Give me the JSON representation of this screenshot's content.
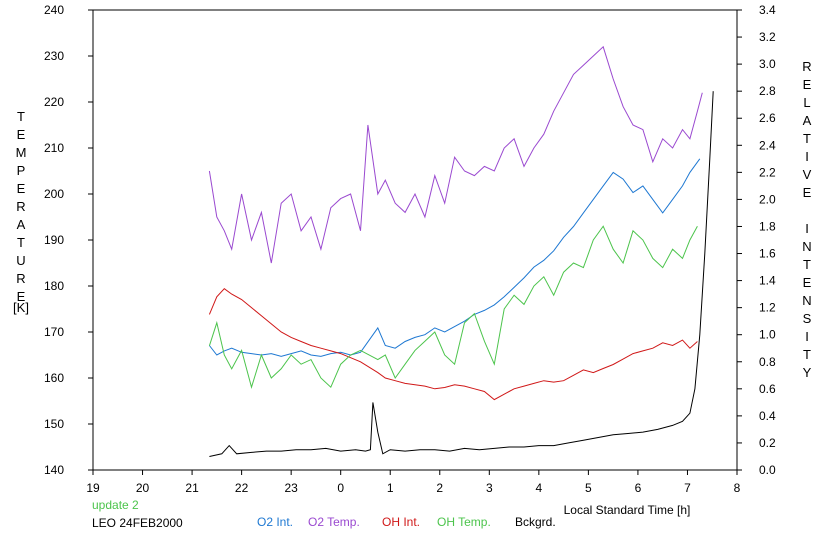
{
  "chart_data": {
    "type": "line",
    "title": "",
    "annotation_update": "update 2",
    "annotation_station": "LEO 24FEB2000",
    "xlabel": "Local Standard Time [h]",
    "ylabel_left": "TEMPERATURE",
    "ylabel_left_unit": "[K]",
    "ylabel_right": "RELATIVE INTENSITY",
    "x_ticks": [
      "19",
      "20",
      "21",
      "22",
      "23",
      "0",
      "1",
      "2",
      "3",
      "4",
      "5",
      "6",
      "7",
      "8"
    ],
    "y_left_ticks": [
      "140",
      "150",
      "160",
      "170",
      "180",
      "190",
      "200",
      "210",
      "220",
      "230",
      "240"
    ],
    "y_right_ticks": [
      "0.0",
      "0.2",
      "0.4",
      "0.6",
      "0.8",
      "1.0",
      "1.2",
      "1.4",
      "1.6",
      "1.8",
      "2.0",
      "2.2",
      "2.4",
      "2.6",
      "2.8",
      "3.0",
      "3.2",
      "3.4"
    ],
    "xlim": [
      19,
      32
    ],
    "ylim_left": [
      140,
      240
    ],
    "ylim_right": [
      0,
      3.4
    ],
    "grid": false,
    "legend_position": "bottom",
    "series": [
      {
        "name": "O2 Int.",
        "axis": "right",
        "color": "#1e78d2",
        "x": [
          21.35,
          21.5,
          21.65,
          21.8,
          22.0,
          22.2,
          22.4,
          22.6,
          22.8,
          23.0,
          23.2,
          23.4,
          23.6,
          23.8,
          24.0,
          24.2,
          24.4,
          24.75,
          24.9,
          25.1,
          25.3,
          25.5,
          25.7,
          25.9,
          26.1,
          26.3,
          26.5,
          26.7,
          26.9,
          27.1,
          27.3,
          27.5,
          27.7,
          27.9,
          28.1,
          28.3,
          28.5,
          28.7,
          28.9,
          29.1,
          29.3,
          29.5,
          29.7,
          29.9,
          30.1,
          30.3,
          30.5,
          30.7,
          30.9,
          31.05,
          31.25
        ],
        "y": [
          0.92,
          0.85,
          0.88,
          0.9,
          0.87,
          0.86,
          0.85,
          0.86,
          0.84,
          0.86,
          0.88,
          0.85,
          0.84,
          0.86,
          0.87,
          0.85,
          0.87,
          1.05,
          0.92,
          0.9,
          0.95,
          0.98,
          1.0,
          1.05,
          1.02,
          1.06,
          1.1,
          1.15,
          1.18,
          1.22,
          1.28,
          1.35,
          1.42,
          1.5,
          1.55,
          1.62,
          1.72,
          1.8,
          1.9,
          2.0,
          2.1,
          2.2,
          2.15,
          2.05,
          2.1,
          2.0,
          1.9,
          2.0,
          2.1,
          2.2,
          2.3
        ]
      },
      {
        "name": "O2 Temp.",
        "axis": "left",
        "color": "#9a49d0",
        "x": [
          21.35,
          21.5,
          21.65,
          21.8,
          22.0,
          22.2,
          22.4,
          22.6,
          22.8,
          23.0,
          23.2,
          23.4,
          23.6,
          23.8,
          24.0,
          24.2,
          24.4,
          24.55,
          24.75,
          24.9,
          25.1,
          25.3,
          25.5,
          25.7,
          25.9,
          26.1,
          26.3,
          26.5,
          26.7,
          26.9,
          27.1,
          27.3,
          27.5,
          27.7,
          27.9,
          28.1,
          28.3,
          28.5,
          28.7,
          28.9,
          29.1,
          29.3,
          29.5,
          29.7,
          29.9,
          30.1,
          30.3,
          30.5,
          30.7,
          30.9,
          31.05,
          31.2,
          31.3
        ],
        "y": [
          205,
          195,
          192,
          188,
          200,
          190,
          196,
          185,
          198,
          200,
          192,
          195,
          188,
          197,
          199,
          200,
          192,
          215,
          200,
          203,
          198,
          196,
          200,
          195,
          204,
          198,
          208,
          205,
          204,
          206,
          205,
          210,
          212,
          206,
          210,
          213,
          218,
          222,
          226,
          228,
          230,
          232,
          225,
          219,
          215,
          214,
          207,
          212,
          210,
          214,
          212,
          218,
          222
        ]
      },
      {
        "name": "OH Int.",
        "axis": "right",
        "color": "#d01818",
        "x": [
          21.35,
          21.5,
          21.65,
          21.8,
          22.0,
          22.2,
          22.4,
          22.6,
          22.8,
          23.0,
          23.2,
          23.4,
          23.6,
          23.8,
          24.0,
          24.2,
          24.4,
          24.75,
          24.9,
          25.1,
          25.3,
          25.5,
          25.7,
          25.9,
          26.1,
          26.3,
          26.5,
          26.7,
          26.9,
          27.1,
          27.3,
          27.5,
          27.7,
          27.9,
          28.1,
          28.3,
          28.5,
          28.7,
          28.9,
          29.1,
          29.3,
          29.5,
          29.7,
          29.9,
          30.1,
          30.3,
          30.5,
          30.7,
          30.9,
          31.05,
          31.2
        ],
        "y": [
          1.15,
          1.28,
          1.34,
          1.3,
          1.26,
          1.2,
          1.14,
          1.08,
          1.02,
          0.98,
          0.95,
          0.92,
          0.9,
          0.88,
          0.86,
          0.83,
          0.8,
          0.72,
          0.68,
          0.66,
          0.64,
          0.63,
          0.62,
          0.6,
          0.61,
          0.63,
          0.62,
          0.6,
          0.58,
          0.52,
          0.56,
          0.6,
          0.62,
          0.64,
          0.66,
          0.65,
          0.66,
          0.7,
          0.74,
          0.72,
          0.75,
          0.78,
          0.82,
          0.86,
          0.88,
          0.9,
          0.94,
          0.92,
          0.96,
          0.9,
          0.95
        ]
      },
      {
        "name": "OH Temp.",
        "axis": "left",
        "color": "#4cc44c",
        "x": [
          21.35,
          21.5,
          21.65,
          21.8,
          22.0,
          22.2,
          22.4,
          22.6,
          22.8,
          23.0,
          23.2,
          23.4,
          23.6,
          23.8,
          24.0,
          24.2,
          24.4,
          24.75,
          24.9,
          25.1,
          25.3,
          25.5,
          25.7,
          25.9,
          26.1,
          26.3,
          26.5,
          26.7,
          26.9,
          27.1,
          27.3,
          27.5,
          27.7,
          27.9,
          28.1,
          28.3,
          28.5,
          28.7,
          28.9,
          29.1,
          29.3,
          29.5,
          29.7,
          29.9,
          30.1,
          30.3,
          30.5,
          30.7,
          30.9,
          31.05,
          31.2
        ],
        "y": [
          167,
          172,
          165,
          162,
          166,
          158,
          165,
          160,
          162,
          165,
          163,
          164,
          160,
          158,
          163,
          165,
          166,
          164,
          165,
          160,
          163,
          166,
          168,
          170,
          165,
          163,
          172,
          174,
          168,
          163,
          175,
          178,
          176,
          180,
          182,
          178,
          183,
          185,
          184,
          190,
          193,
          188,
          185,
          192,
          190,
          186,
          184,
          188,
          186,
          190,
          193
        ]
      },
      {
        "name": "Bckgrd.",
        "axis": "right",
        "color": "#000000",
        "x": [
          21.35,
          21.6,
          21.75,
          21.9,
          22.2,
          22.5,
          22.8,
          23.1,
          23.4,
          23.7,
          24.0,
          24.3,
          24.5,
          24.6,
          24.65,
          24.75,
          24.85,
          25.0,
          25.3,
          25.6,
          25.9,
          26.2,
          26.5,
          26.8,
          27.1,
          27.4,
          27.7,
          28.0,
          28.3,
          28.6,
          28.9,
          29.2,
          29.5,
          29.8,
          30.1,
          30.4,
          30.7,
          30.9,
          31.05,
          31.15,
          31.25,
          31.35,
          31.45,
          31.52
        ],
        "y": [
          0.1,
          0.12,
          0.18,
          0.12,
          0.13,
          0.14,
          0.14,
          0.15,
          0.15,
          0.16,
          0.14,
          0.15,
          0.14,
          0.15,
          0.5,
          0.28,
          0.12,
          0.15,
          0.14,
          0.15,
          0.15,
          0.14,
          0.16,
          0.15,
          0.16,
          0.17,
          0.17,
          0.18,
          0.18,
          0.2,
          0.22,
          0.24,
          0.26,
          0.27,
          0.28,
          0.3,
          0.33,
          0.36,
          0.42,
          0.6,
          1.0,
          1.6,
          2.3,
          2.8
        ]
      }
    ]
  }
}
